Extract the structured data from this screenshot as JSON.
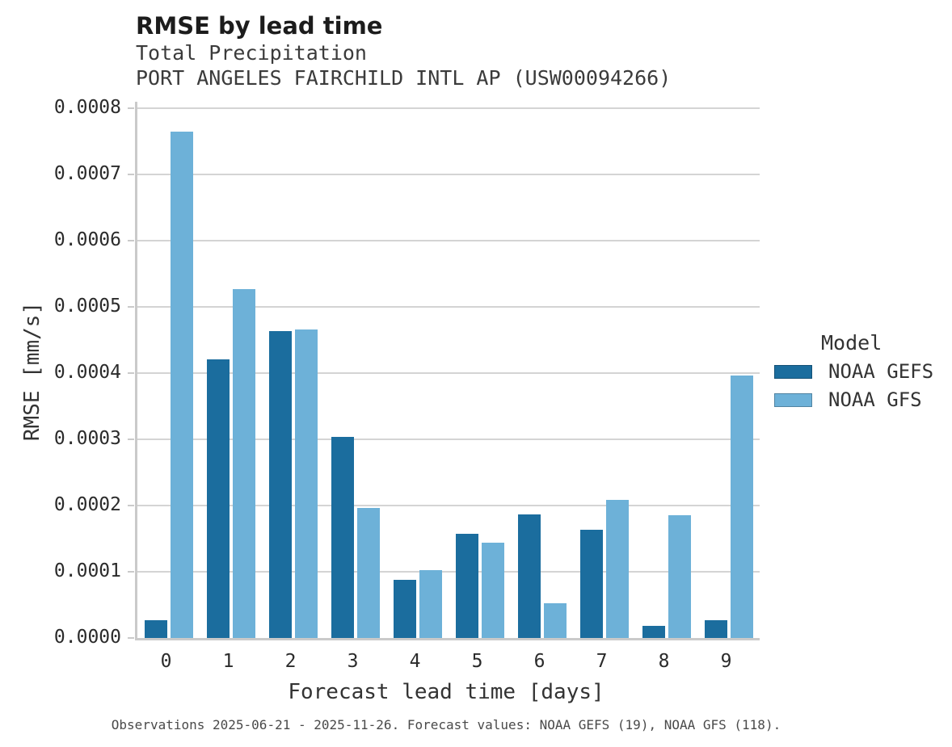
{
  "header": {
    "title": "RMSE by lead time",
    "subtitle": "Total Precipitation",
    "station": "PORT ANGELES FAIRCHILD INTL AP (USW00094266)"
  },
  "chart_data": {
    "type": "bar",
    "grouped": true,
    "title": "RMSE by lead time",
    "subtitle": [
      "Total Precipitation",
      "PORT ANGELES FAIRCHILD INTL AP (USW00094266)"
    ],
    "xlabel": "Forecast lead time [days]",
    "ylabel": "RMSE [mm/s]",
    "categories": [
      "0",
      "1",
      "2",
      "3",
      "4",
      "5",
      "6",
      "7",
      "8",
      "9"
    ],
    "series": [
      {
        "name": "NOAA GEFS",
        "color": "#1b6d9e",
        "values": [
          2.7e-05,
          0.000421,
          0.000463,
          0.000304,
          8.8e-05,
          0.000157,
          0.000186,
          0.000163,
          1.8e-05,
          2.7e-05
        ]
      },
      {
        "name": "NOAA GFS",
        "color": "#6db1d8",
        "values": [
          0.000765,
          0.000527,
          0.000466,
          0.000196,
          0.000102,
          0.000144,
          5.2e-05,
          0.000208,
          0.000185,
          0.000396
        ]
      }
    ],
    "ylim": [
      0,
      0.0008
    ],
    "ytick_step": 0.0001,
    "ytick_labels": [
      "0.0000",
      "0.0001",
      "0.0002",
      "0.0003",
      "0.0004",
      "0.0005",
      "0.0006",
      "0.0007",
      "0.0008"
    ],
    "grid": true,
    "legend_position": "right"
  },
  "legend": {
    "title": "Model",
    "items": [
      {
        "label": "NOAA GEFS",
        "color": "#1b6d9e"
      },
      {
        "label": "NOAA GFS",
        "color": "#6db1d8"
      }
    ]
  },
  "caption": "Observations 2025-06-21 - 2025-11-26. Forecast values: NOAA GEFS (19), NOAA GFS (118).",
  "colors": {
    "bar_dark": "#1b6d9e",
    "bar_light": "#6db1d8",
    "gridline": "#d4d4d4",
    "axis": "#cacaca",
    "title_text": "#1c1c1c",
    "subtitle_text": "#3b3b3b",
    "tick_text": "#2b2b2b"
  }
}
